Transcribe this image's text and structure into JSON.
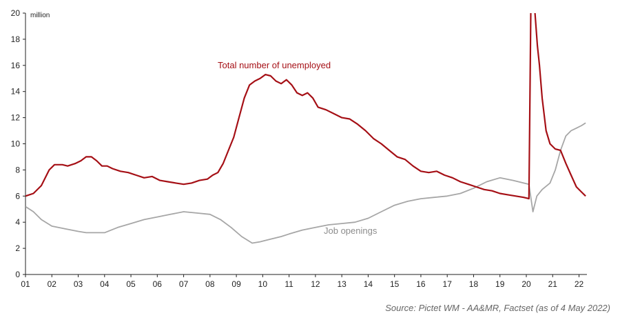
{
  "chart_data": {
    "type": "line",
    "ylabel": "million",
    "ylim": [
      0,
      20
    ],
    "yticks": [
      0,
      2,
      4,
      6,
      8,
      10,
      12,
      14,
      16,
      18,
      20
    ],
    "xlim": [
      2001.0,
      2022.3
    ],
    "xtick_labels": [
      "01",
      "02",
      "03",
      "04",
      "05",
      "06",
      "07",
      "08",
      "09",
      "10",
      "11",
      "12",
      "13",
      "14",
      "15",
      "16",
      "17",
      "18",
      "19",
      "20",
      "21",
      "22"
    ],
    "grid": false,
    "colors": {
      "unemployed": "#a50f15",
      "openings": "#a6a6a6",
      "axis": "#222222"
    },
    "series": [
      {
        "name": "Total number of unemployed",
        "x": [
          2001.0,
          2001.3,
          2001.6,
          2001.9,
          2002.1,
          2002.4,
          2002.6,
          2002.9,
          2003.1,
          2003.3,
          2003.5,
          2003.7,
          2003.9,
          2004.1,
          2004.3,
          2004.6,
          2004.9,
          2005.2,
          2005.5,
          2005.8,
          2006.1,
          2006.4,
          2006.7,
          2007.0,
          2007.3,
          2007.6,
          2007.9,
          2008.1,
          2008.3,
          2008.5,
          2008.7,
          2008.9,
          2009.1,
          2009.3,
          2009.5,
          2009.7,
          2009.9,
          2010.1,
          2010.3,
          2010.5,
          2010.7,
          2010.9,
          2011.1,
          2011.3,
          2011.5,
          2011.7,
          2011.9,
          2012.1,
          2012.4,
          2012.7,
          2013.0,
          2013.3,
          2013.6,
          2013.9,
          2014.2,
          2014.5,
          2014.8,
          2015.1,
          2015.4,
          2015.7,
          2016.0,
          2016.3,
          2016.6,
          2016.9,
          2017.2,
          2017.5,
          2017.8,
          2018.1,
          2018.4,
          2018.7,
          2019.0,
          2019.3,
          2019.6,
          2019.9,
          2020.1,
          2020.17,
          2020.25,
          2020.33,
          2020.42,
          2020.5,
          2020.6,
          2020.75,
          2020.9,
          2021.1,
          2021.3,
          2021.5,
          2021.7,
          2021.9,
          2022.1,
          2022.25
        ],
        "values": [
          6.0,
          6.2,
          6.8,
          8.0,
          8.4,
          8.4,
          8.3,
          8.5,
          8.7,
          9.0,
          9.0,
          8.7,
          8.3,
          8.3,
          8.1,
          7.9,
          7.8,
          7.6,
          7.4,
          7.5,
          7.2,
          7.1,
          7.0,
          6.9,
          7.0,
          7.2,
          7.3,
          7.6,
          7.8,
          8.5,
          9.5,
          10.5,
          12.0,
          13.5,
          14.5,
          14.8,
          15.0,
          15.3,
          15.2,
          14.8,
          14.6,
          14.9,
          14.5,
          13.9,
          13.7,
          13.9,
          13.5,
          12.8,
          12.6,
          12.3,
          12.0,
          11.9,
          11.5,
          11.0,
          10.4,
          10.0,
          9.5,
          9.0,
          8.8,
          8.3,
          7.9,
          7.8,
          7.9,
          7.6,
          7.4,
          7.1,
          6.9,
          6.7,
          6.5,
          6.4,
          6.2,
          6.1,
          6.0,
          5.9,
          5.8,
          20.0,
          23.0,
          20.0,
          17.5,
          16.0,
          13.5,
          11.0,
          10.0,
          9.6,
          9.5,
          8.5,
          7.6,
          6.7,
          6.3,
          6.0
        ]
      },
      {
        "name": "Job openings",
        "x": [
          2001.0,
          2001.3,
          2001.6,
          2002.0,
          2002.5,
          2003.0,
          2003.3,
          2003.6,
          2004.0,
          2004.5,
          2005.0,
          2005.5,
          2006.0,
          2006.5,
          2007.0,
          2007.5,
          2008.0,
          2008.4,
          2008.8,
          2009.2,
          2009.6,
          2009.9,
          2010.3,
          2010.7,
          2011.0,
          2011.5,
          2012.0,
          2012.5,
          2013.0,
          2013.5,
          2014.0,
          2014.5,
          2015.0,
          2015.5,
          2016.0,
          2016.5,
          2017.0,
          2017.5,
          2018.0,
          2018.5,
          2019.0,
          2019.5,
          2019.9,
          2020.1,
          2020.25,
          2020.4,
          2020.6,
          2020.9,
          2021.1,
          2021.3,
          2021.5,
          2021.7,
          2021.9,
          2022.1,
          2022.25
        ],
        "values": [
          5.2,
          4.8,
          4.2,
          3.7,
          3.5,
          3.3,
          3.2,
          3.2,
          3.2,
          3.6,
          3.9,
          4.2,
          4.4,
          4.6,
          4.8,
          4.7,
          4.6,
          4.2,
          3.6,
          2.9,
          2.4,
          2.5,
          2.7,
          2.9,
          3.1,
          3.4,
          3.6,
          3.8,
          3.9,
          4.0,
          4.3,
          4.8,
          5.3,
          5.6,
          5.8,
          5.9,
          6.0,
          6.2,
          6.6,
          7.1,
          7.4,
          7.2,
          7.0,
          6.9,
          4.8,
          6.0,
          6.5,
          7.0,
          8.0,
          9.5,
          10.6,
          11.0,
          11.2,
          11.4,
          11.6
        ]
      }
    ],
    "annotations": {
      "unemployed_label": "Total number of unemployed",
      "openings_label": "Job openings"
    }
  },
  "source": "Source: Pictet WM - AA&MR, Factset (as of 4 May 2022)"
}
